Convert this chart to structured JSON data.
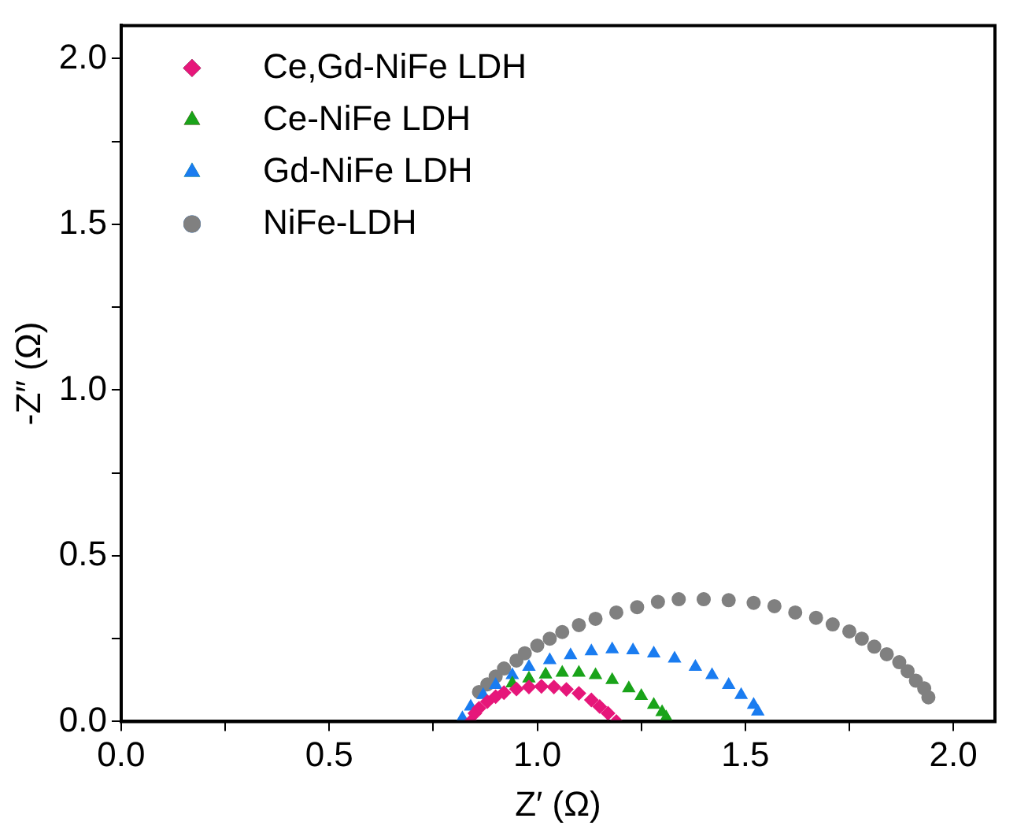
{
  "chart_data": {
    "type": "scatter",
    "xlabel": "Z′ (Ω)",
    "ylabel": "-Z″ (Ω)",
    "xlim": [
      0,
      2.1
    ],
    "xticks": [
      {
        "value": 0,
        "label": "0.0"
      },
      {
        "value": 0.25,
        "label": null
      },
      0.5,
      {
        "value": 0.75,
        "label": null
      },
      {
        "value": 1,
        "label": "1.0"
      },
      {
        "value": 1.25,
        "label": null
      },
      1.5,
      {
        "value": 1.75,
        "label": null
      },
      {
        "value": 2,
        "label": "2.0"
      }
    ],
    "ylim": [
      0,
      2.1
    ],
    "yticks": [
      {
        "value": 0,
        "label": "0.0"
      },
      {
        "value": 0.25,
        "label": null
      },
      0.5,
      {
        "value": 0.75,
        "label": null
      },
      {
        "value": 1,
        "label": "1.0"
      },
      {
        "value": 1.25,
        "label": null
      },
      1.5,
      {
        "value": 1.75,
        "label": null
      },
      {
        "value": 2,
        "label": "2.0"
      }
    ],
    "legend": "top left",
    "grid": false,
    "series": [
      {
        "name": "Ce,Gd-NiFe LDH",
        "color": "#e6177a",
        "marker": "diamond",
        "x": [
          0.84,
          0.85,
          0.86,
          0.88,
          0.9,
          0.92,
          0.95,
          0.98,
          1.01,
          1.04,
          1.07,
          1.1,
          1.13,
          1.15,
          1.17,
          1.19
        ],
        "values": [
          0,
          0.025,
          0.04,
          0.06,
          0.075,
          0.087,
          0.098,
          0.104,
          0.106,
          0.104,
          0.097,
          0.085,
          0.065,
          0.045,
          0.025,
          0
        ]
      },
      {
        "name": "Ce-NiFe LDH",
        "color": "#1aa31a",
        "marker": "triangle",
        "x": [
          0.94,
          0.98,
          1.02,
          1.06,
          1.1,
          1.14,
          1.18,
          1.22,
          1.25,
          1.28,
          1.3,
          1.31
        ],
        "values": [
          0.115,
          0.13,
          0.142,
          0.147,
          0.147,
          0.14,
          0.125,
          0.1,
          0.077,
          0.05,
          0.028,
          0.012
        ]
      },
      {
        "name": "Gd-NiFe LDH",
        "color": "#1a7cf0",
        "marker": "triangle",
        "x": [
          0.82,
          0.84,
          0.87,
          0.9,
          0.94,
          0.98,
          1.03,
          1.08,
          1.13,
          1.18,
          1.23,
          1.28,
          1.33,
          1.38,
          1.42,
          1.46,
          1.49,
          1.52,
          1.53
        ],
        "values": [
          0.01,
          0.045,
          0.08,
          0.11,
          0.14,
          0.165,
          0.185,
          0.2,
          0.212,
          0.218,
          0.215,
          0.205,
          0.19,
          0.165,
          0.14,
          0.11,
          0.08,
          0.05,
          0.03
        ]
      },
      {
        "name": "NiFe-LDH",
        "color": "#808080",
        "marker": "circle",
        "x": [
          0.86,
          0.88,
          0.9,
          0.92,
          0.95,
          0.97,
          1,
          1.03,
          1.06,
          1.1,
          1.14,
          1.19,
          1.24,
          1.29,
          1.34,
          1.4,
          1.46,
          1.52,
          1.57,
          1.62,
          1.67,
          1.71,
          1.75,
          1.78,
          1.81,
          1.84,
          1.87,
          1.89,
          1.91,
          1.93,
          1.94
        ],
        "values": [
          0.089,
          0.112,
          0.136,
          0.16,
          0.184,
          0.206,
          0.229,
          0.25,
          0.27,
          0.291,
          0.31,
          0.329,
          0.345,
          0.361,
          0.369,
          0.369,
          0.366,
          0.358,
          0.348,
          0.329,
          0.313,
          0.293,
          0.272,
          0.25,
          0.226,
          0.203,
          0.179,
          0.152,
          0.123,
          0.1,
          0.073
        ]
      }
    ]
  }
}
